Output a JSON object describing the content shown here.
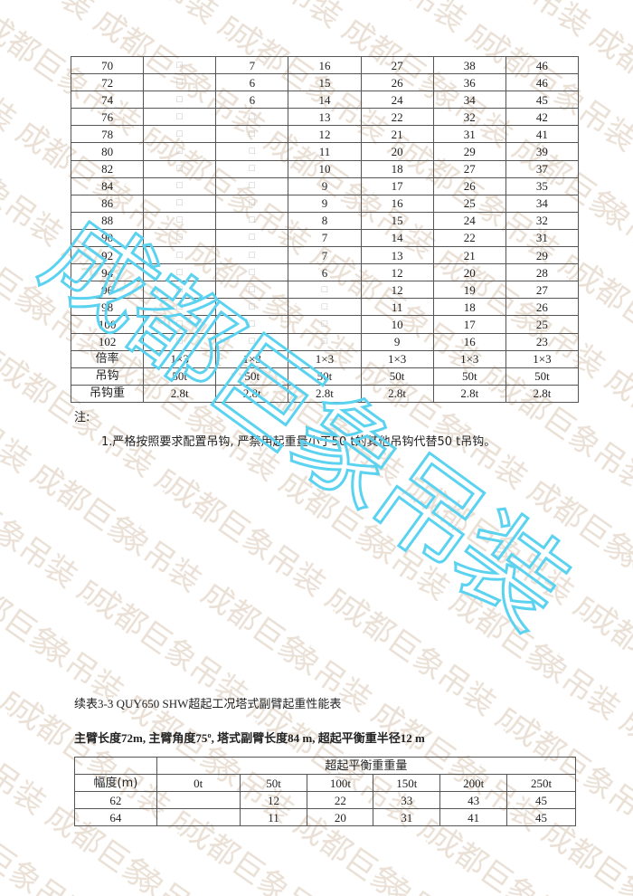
{
  "watermark": {
    "text": "成都巨象吊装",
    "tile_color": "#e3d6c8",
    "overlay_color": "#5bd3f0"
  },
  "table1": {
    "rows": [
      [
        "70",
        "□",
        "7",
        "16",
        "27",
        "38",
        "46"
      ],
      [
        "72",
        "□",
        "6",
        "15",
        "26",
        "36",
        "46"
      ],
      [
        "74",
        "□",
        "6",
        "14",
        "24",
        "34",
        "45"
      ],
      [
        "76",
        "□",
        "□",
        "13",
        "22",
        "32",
        "42"
      ],
      [
        "78",
        "□",
        "□",
        "12",
        "21",
        "31",
        "41"
      ],
      [
        "80",
        "□",
        "□",
        "11",
        "20",
        "29",
        "39"
      ],
      [
        "82",
        "□",
        "□",
        "10",
        "18",
        "27",
        "37"
      ],
      [
        "84",
        "□",
        "□",
        "9",
        "17",
        "26",
        "35"
      ],
      [
        "86",
        "□",
        "□",
        "9",
        "16",
        "25",
        "34"
      ],
      [
        "88",
        "□",
        "□",
        "8",
        "15",
        "24",
        "32"
      ],
      [
        "90",
        "□",
        "□",
        "7",
        "14",
        "22",
        "31"
      ],
      [
        "92",
        "□",
        "□",
        "7",
        "13",
        "21",
        "29"
      ],
      [
        "94",
        "□",
        "□",
        "6",
        "12",
        "20",
        "28"
      ],
      [
        "96",
        "□",
        "□",
        "□",
        "12",
        "19",
        "27"
      ],
      [
        "98",
        "□",
        "□",
        "□",
        "11",
        "18",
        "26"
      ],
      [
        "100",
        "□",
        "□",
        "□",
        "10",
        "17",
        "25"
      ],
      [
        "102",
        "□",
        "□",
        "□",
        "9",
        "16",
        "23"
      ],
      [
        "倍率",
        "1×3",
        "1×3",
        "1×3",
        "1×3",
        "1×3",
        "1×3"
      ],
      [
        "吊钩",
        "50t",
        "50t",
        "50t",
        "50t",
        "50t",
        "50t"
      ],
      [
        "吊钩重",
        "2.8t",
        "2.8t",
        "2.8t",
        "2.8t",
        "2.8t",
        "2.8t"
      ]
    ]
  },
  "notes": {
    "label": "注:",
    "item1": "1.严格按照要求配置吊钩, 严禁用起重量小于50 t的其他吊钩代替50 t吊钩。"
  },
  "table2": {
    "title": "续表3-3 QUY650 SHW超起工况塔式副臂起重性能表",
    "subtitle": "主臂长度72m, 主臂角度75º, 塔式副臂长度84 m, 超起平衡重半径12 m",
    "group_header": "超起平衡重重量",
    "row_header": "幅度(m)",
    "columns": [
      "0t",
      "50t",
      "100t",
      "150t",
      "200t",
      "250t"
    ],
    "rows": [
      [
        "62",
        "",
        "12",
        "22",
        "33",
        "43",
        "45"
      ],
      [
        "64",
        "",
        "11",
        "20",
        "31",
        "41",
        "45"
      ]
    ]
  }
}
